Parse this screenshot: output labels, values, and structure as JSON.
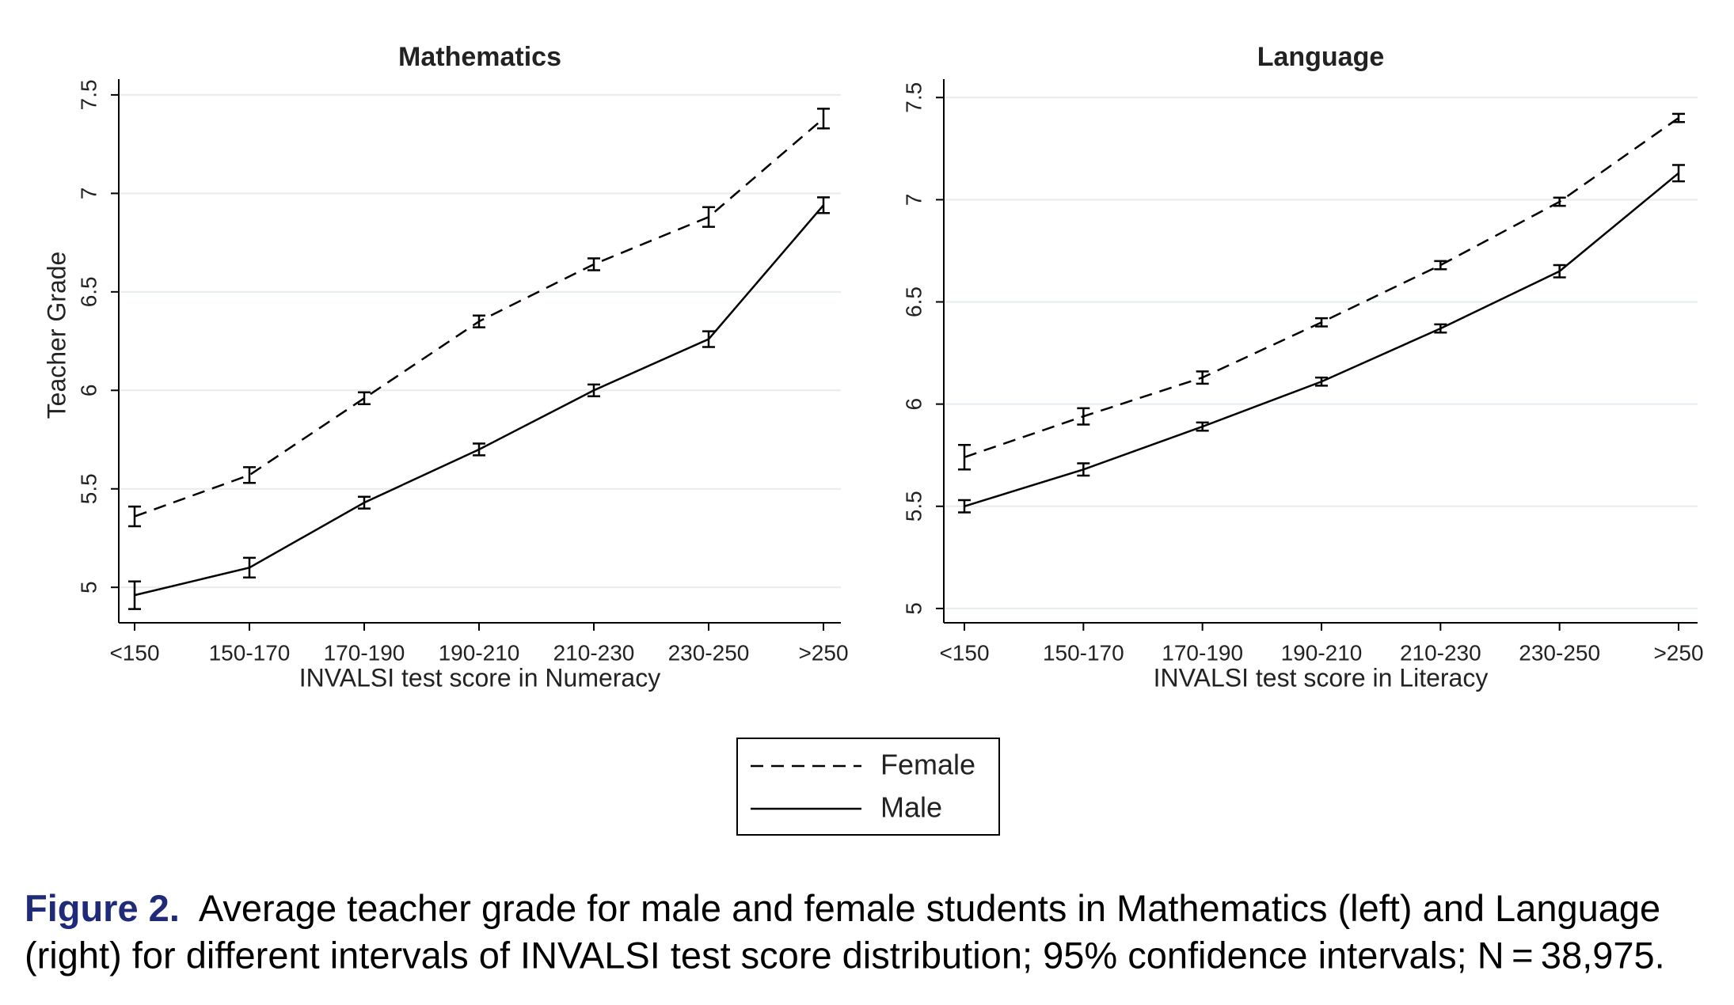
{
  "chart_data": [
    {
      "type": "line",
      "title": "Mathematics",
      "y_label": "Teacher Grade",
      "x_label": "INVALSI test score in Numeracy",
      "categories": [
        "<150",
        "150-170",
        "170-190",
        "190-210",
        "210-230",
        "230-250",
        ">250"
      ],
      "series": [
        {
          "name": "Female",
          "color": "#000000",
          "dash": true,
          "values": [
            5.36,
            5.57,
            5.96,
            6.35,
            6.64,
            6.88,
            7.38
          ],
          "errors": [
            0.05,
            0.04,
            0.03,
            0.03,
            0.03,
            0.05,
            0.05
          ]
        },
        {
          "name": "Male",
          "color": "#000000",
          "dash": false,
          "values": [
            4.96,
            5.1,
            5.43,
            5.7,
            6.0,
            6.26,
            6.94
          ],
          "errors": [
            0.07,
            0.05,
            0.03,
            0.03,
            0.03,
            0.04,
            0.04
          ]
        }
      ],
      "ylim": [
        4.82,
        7.58
      ],
      "yticks": [
        5,
        5.5,
        6,
        6.5,
        7,
        7.5
      ],
      "grid": true
    },
    {
      "type": "line",
      "title": "Language",
      "x_label": "INVALSI test score in Literacy",
      "categories": [
        "<150",
        "150-170",
        "170-190",
        "190-210",
        "210-230",
        "230-250",
        ">250"
      ],
      "series": [
        {
          "name": "Female",
          "color": "#000000",
          "dash": true,
          "values": [
            5.74,
            5.94,
            6.13,
            6.4,
            6.68,
            6.99,
            7.4
          ],
          "errors": [
            0.06,
            0.04,
            0.03,
            0.02,
            0.02,
            0.02,
            0.02
          ]
        },
        {
          "name": "Male",
          "color": "#000000",
          "dash": false,
          "values": [
            5.5,
            5.68,
            5.89,
            6.11,
            6.37,
            6.65,
            7.13
          ],
          "errors": [
            0.03,
            0.03,
            0.02,
            0.02,
            0.02,
            0.03,
            0.04
          ]
        }
      ],
      "ylim": [
        4.93,
        7.59
      ],
      "yticks": [
        5,
        5.5,
        6,
        6.5,
        7,
        7.5
      ],
      "grid": true
    }
  ],
  "caption": {
    "label": "Figure 2.",
    "lines": [
      "Average teacher grade for male and female students in Mathematics (left) and Language",
      "(right) for different intervals of INVALSI test score distribution; 95% confidence intervals; N = 38,975."
    ]
  }
}
